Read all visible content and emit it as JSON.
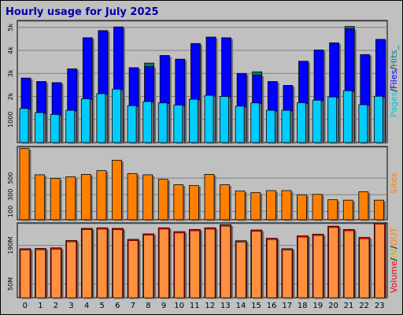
{
  "chart_data": [
    {
      "type": "bar",
      "title": "Hourly usage for July 2025",
      "categories": [
        "0",
        "1",
        "2",
        "3",
        "4",
        "5",
        "6",
        "7",
        "8",
        "9",
        "10",
        "11",
        "12",
        "13",
        "14",
        "15",
        "16",
        "17",
        "18",
        "19",
        "20",
        "21",
        "22",
        "23"
      ],
      "ylim": [
        0,
        5300
      ],
      "yticks": [
        "1000",
        "2000",
        "3000",
        "4000",
        "5000"
      ],
      "ytick_labels": [
        "1000",
        "2k",
        "3k",
        "4k",
        "5k"
      ],
      "side_labels": [
        "Pages",
        "/",
        "Files",
        "/",
        "Hits_"
      ],
      "side_colors": [
        "#00cccc",
        "#000000",
        "#0000ff",
        "#000000",
        "#008080"
      ],
      "series": [
        {
          "name": "Hits",
          "color": "#008060",
          "values": [
            2800,
            2650,
            2600,
            3200,
            4550,
            4860,
            5020,
            3250,
            3450,
            3780,
            3620,
            4300,
            4580,
            4550,
            3000,
            3070,
            2650,
            2480,
            3530,
            4020,
            4330,
            5040,
            3820,
            4480
          ]
        },
        {
          "name": "Files",
          "color": "#0000ff",
          "values": [
            2800,
            2650,
            2600,
            3200,
            4550,
            4860,
            5020,
            3250,
            3300,
            3780,
            3620,
            4300,
            4580,
            4550,
            3000,
            2930,
            2650,
            2480,
            3530,
            4020,
            4330,
            4940,
            3820,
            4480
          ]
        },
        {
          "name": "Pages",
          "color": "#00ccff",
          "values": [
            1480,
            1300,
            1220,
            1400,
            1900,
            2120,
            2320,
            1600,
            1780,
            1720,
            1630,
            1880,
            2050,
            2000,
            1580,
            1720,
            1400,
            1400,
            1730,
            1840,
            1980,
            2250,
            1640,
            2010
          ]
        }
      ]
    },
    {
      "type": "bar",
      "categories": [
        "0",
        "1",
        "2",
        "3",
        "4",
        "5",
        "6",
        "7",
        "8",
        "9",
        "10",
        "11",
        "12",
        "13",
        "14",
        "15",
        "16",
        "17",
        "18",
        "19",
        "20",
        "21",
        "22",
        "23"
      ],
      "ylim": [
        0,
        880
      ],
      "yticks": [
        "100",
        "300",
        "500"
      ],
      "ytick_labels": [
        "100",
        "300",
        "500"
      ],
      "side_labels": [
        "Sites"
      ],
      "side_colors": [
        "#ff8000"
      ],
      "series": [
        {
          "name": "Sites",
          "color": "#ff8000",
          "values": [
            855,
            540,
            495,
            515,
            545,
            590,
            715,
            555,
            540,
            485,
            420,
            410,
            545,
            420,
            345,
            325,
            350,
            350,
            300,
            305,
            240,
            235,
            335,
            235
          ]
        }
      ]
    },
    {
      "type": "bar",
      "categories": [
        "0",
        "1",
        "2",
        "3",
        "4",
        "5",
        "6",
        "7",
        "8",
        "9",
        "10",
        "11",
        "12",
        "13",
        "14",
        "15",
        "16",
        "17",
        "18",
        "19",
        "20",
        "21",
        "22",
        "23"
      ],
      "ylim": [
        0,
        272
      ],
      "yticks": [
        "50",
        "190"
      ],
      "ytick_labels": [
        "50M",
        "190M"
      ],
      "side_labels": [
        "Volume",
        "/",
        "IN",
        "/",
        "OUT"
      ],
      "side_colors": [
        "#ff0000",
        "#000000",
        "#c0c000",
        "#000000",
        "#ff8000"
      ],
      "series": [
        {
          "name": "Volume",
          "color": "#ff0000",
          "values": [
            178,
            179,
            181,
            208,
            252,
            254,
            252,
            212,
            232,
            254,
            240,
            248,
            254,
            265,
            207,
            246,
            216,
            178,
            225,
            231,
            260,
            248,
            219,
            272
          ]
        },
        {
          "name": "OUT",
          "color": "#ff9040",
          "values": [
            173,
            174,
            176,
            203,
            247,
            249,
            247,
            207,
            227,
            249,
            235,
            243,
            249,
            260,
            202,
            241,
            211,
            173,
            220,
            226,
            255,
            243,
            214,
            267
          ]
        }
      ]
    }
  ]
}
